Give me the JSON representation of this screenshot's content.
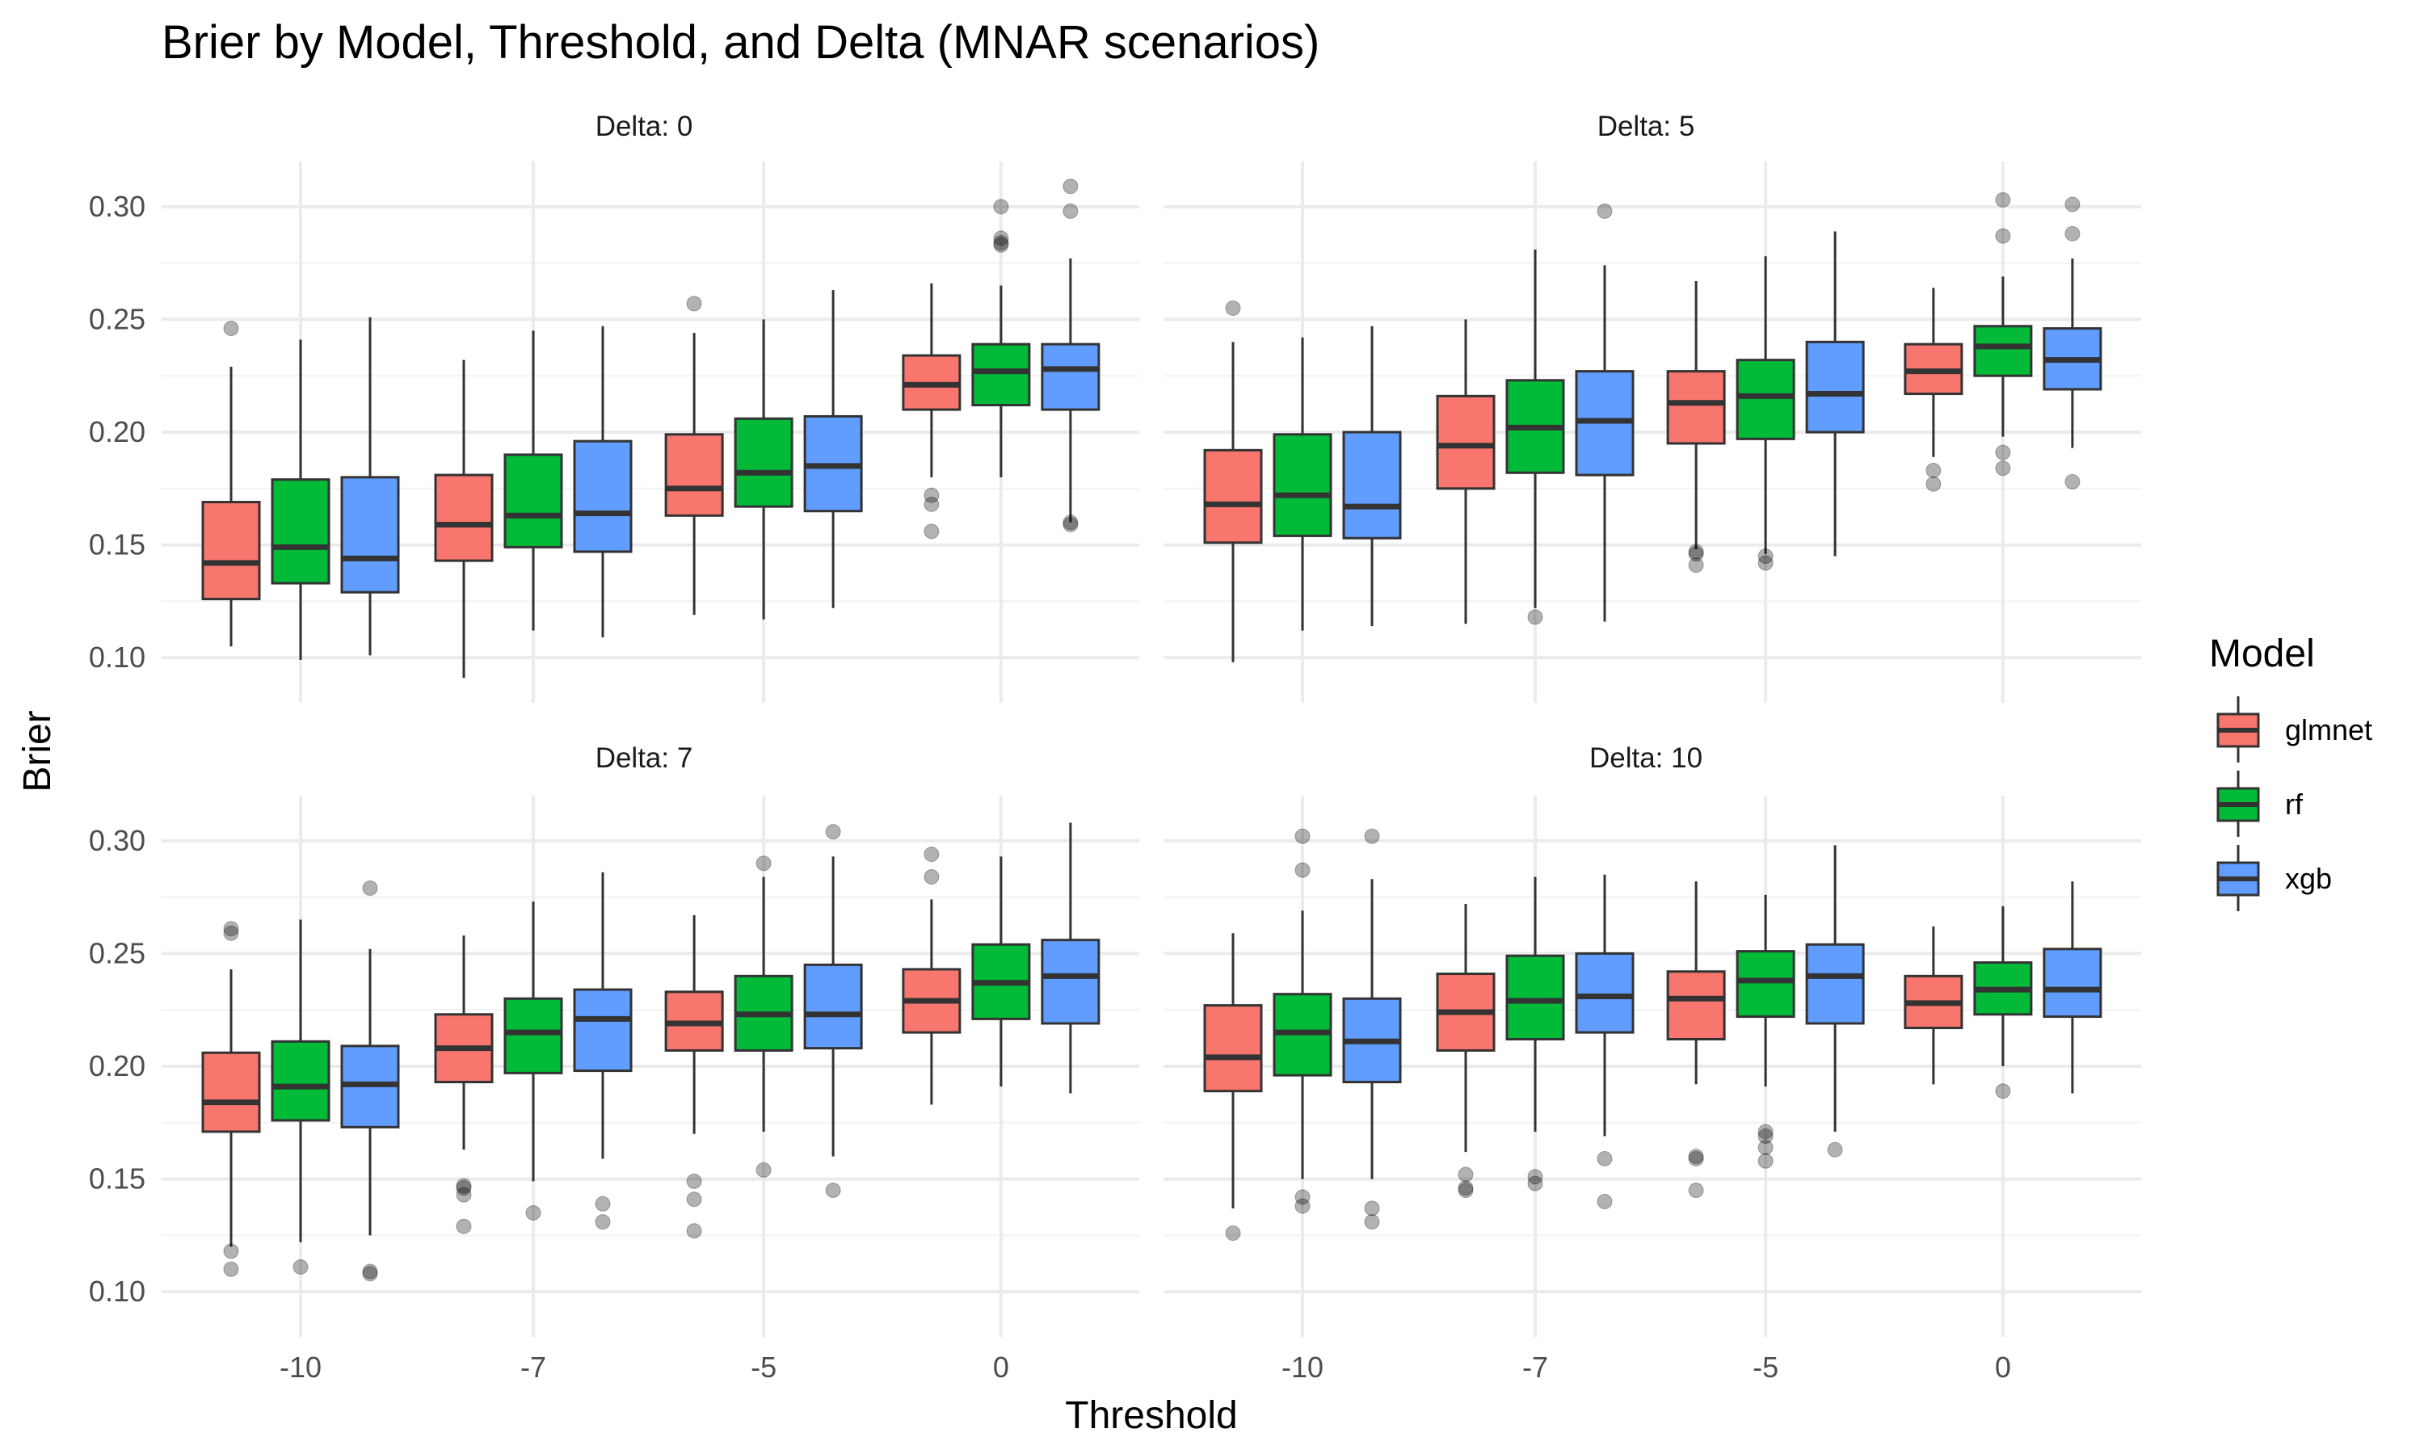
{
  "chart_data": {
    "type": "box",
    "title": "Brier by Model, Threshold, and Delta (MNAR scenarios)",
    "xlabel": "Threshold",
    "ylabel": "Brier",
    "categories": [
      "-10",
      "-7",
      "-5",
      "0"
    ],
    "ylim": [
      0.08,
      0.32
    ],
    "yticks": [
      0.1,
      0.15,
      0.2,
      0.25,
      0.3
    ],
    "ytick_labels": [
      "0.10",
      "0.15",
      "0.20",
      "0.25",
      "0.30"
    ],
    "grid": true,
    "legend": {
      "title": "Model",
      "placement": "right",
      "entries": [
        {
          "name": "glmnet",
          "color": "#F8766D"
        },
        {
          "name": "rf",
          "color": "#00BA38"
        },
        {
          "name": "xgb",
          "color": "#619CFF"
        }
      ]
    },
    "panels": [
      {
        "label": "Delta: 0",
        "series": {
          "glmnet": [
            {
              "min": 0.105,
              "q1": 0.126,
              "median": 0.142,
              "q3": 0.169,
              "max": 0.229,
              "outliers": [
                0.246
              ]
            },
            {
              "min": 0.091,
              "q1": 0.143,
              "median": 0.159,
              "q3": 0.181,
              "max": 0.232,
              "outliers": []
            },
            {
              "min": 0.119,
              "q1": 0.163,
              "median": 0.175,
              "q3": 0.199,
              "max": 0.244,
              "outliers": [
                0.257
              ]
            },
            {
              "min": 0.18,
              "q1": 0.21,
              "median": 0.221,
              "q3": 0.234,
              "max": 0.266,
              "outliers": [
                0.172,
                0.168,
                0.156
              ]
            }
          ],
          "rf": [
            {
              "min": 0.099,
              "q1": 0.133,
              "median": 0.149,
              "q3": 0.179,
              "max": 0.241,
              "outliers": []
            },
            {
              "min": 0.112,
              "q1": 0.149,
              "median": 0.163,
              "q3": 0.19,
              "max": 0.245,
              "outliers": []
            },
            {
              "min": 0.117,
              "q1": 0.167,
              "median": 0.182,
              "q3": 0.206,
              "max": 0.25,
              "outliers": []
            },
            {
              "min": 0.18,
              "q1": 0.212,
              "median": 0.227,
              "q3": 0.239,
              "max": 0.265,
              "outliers": [
                0.3,
                0.286,
                0.284,
                0.283
              ]
            }
          ],
          "xgb": [
            {
              "min": 0.101,
              "q1": 0.129,
              "median": 0.144,
              "q3": 0.18,
              "max": 0.251,
              "outliers": []
            },
            {
              "min": 0.109,
              "q1": 0.147,
              "median": 0.164,
              "q3": 0.196,
              "max": 0.247,
              "outliers": []
            },
            {
              "min": 0.122,
              "q1": 0.165,
              "median": 0.185,
              "q3": 0.207,
              "max": 0.263,
              "outliers": []
            },
            {
              "min": 0.16,
              "q1": 0.21,
              "median": 0.228,
              "q3": 0.239,
              "max": 0.277,
              "outliers": [
                0.309,
                0.298,
                0.16,
                0.159
              ]
            }
          ]
        }
      },
      {
        "label": "Delta: 5",
        "series": {
          "glmnet": [
            {
              "min": 0.098,
              "q1": 0.151,
              "median": 0.168,
              "q3": 0.192,
              "max": 0.24,
              "outliers": [
                0.255
              ]
            },
            {
              "min": 0.115,
              "q1": 0.175,
              "median": 0.194,
              "q3": 0.216,
              "max": 0.25,
              "outliers": []
            },
            {
              "min": 0.148,
              "q1": 0.195,
              "median": 0.213,
              "q3": 0.227,
              "max": 0.267,
              "outliers": [
                0.147,
                0.146,
                0.141
              ]
            },
            {
              "min": 0.189,
              "q1": 0.217,
              "median": 0.227,
              "q3": 0.239,
              "max": 0.264,
              "outliers": [
                0.183,
                0.177
              ]
            }
          ],
          "rf": [
            {
              "min": 0.112,
              "q1": 0.154,
              "median": 0.172,
              "q3": 0.199,
              "max": 0.242,
              "outliers": []
            },
            {
              "min": 0.122,
              "q1": 0.182,
              "median": 0.202,
              "q3": 0.223,
              "max": 0.281,
              "outliers": [
                0.118
              ]
            },
            {
              "min": 0.146,
              "q1": 0.197,
              "median": 0.216,
              "q3": 0.232,
              "max": 0.278,
              "outliers": [
                0.145,
                0.142
              ]
            },
            {
              "min": 0.198,
              "q1": 0.225,
              "median": 0.238,
              "q3": 0.247,
              "max": 0.269,
              "outliers": [
                0.303,
                0.287,
                0.191,
                0.184
              ]
            }
          ],
          "xgb": [
            {
              "min": 0.114,
              "q1": 0.153,
              "median": 0.167,
              "q3": 0.2,
              "max": 0.247,
              "outliers": []
            },
            {
              "min": 0.116,
              "q1": 0.181,
              "median": 0.205,
              "q3": 0.227,
              "max": 0.274,
              "outliers": [
                0.298
              ]
            },
            {
              "min": 0.145,
              "q1": 0.2,
              "median": 0.217,
              "q3": 0.24,
              "max": 0.289,
              "outliers": []
            },
            {
              "min": 0.193,
              "q1": 0.219,
              "median": 0.232,
              "q3": 0.246,
              "max": 0.277,
              "outliers": [
                0.301,
                0.288,
                0.178
              ]
            }
          ]
        }
      },
      {
        "label": "Delta: 7",
        "series": {
          "glmnet": [
            {
              "min": 0.12,
              "q1": 0.171,
              "median": 0.184,
              "q3": 0.206,
              "max": 0.243,
              "outliers": [
                0.261,
                0.259,
                0.118,
                0.11
              ]
            },
            {
              "min": 0.163,
              "q1": 0.193,
              "median": 0.208,
              "q3": 0.223,
              "max": 0.258,
              "outliers": [
                0.147,
                0.146,
                0.143,
                0.129
              ]
            },
            {
              "min": 0.17,
              "q1": 0.207,
              "median": 0.219,
              "q3": 0.233,
              "max": 0.267,
              "outliers": [
                0.149,
                0.141,
                0.127
              ]
            },
            {
              "min": 0.183,
              "q1": 0.215,
              "median": 0.229,
              "q3": 0.243,
              "max": 0.274,
              "outliers": [
                0.294,
                0.284
              ]
            }
          ],
          "rf": [
            {
              "min": 0.122,
              "q1": 0.176,
              "median": 0.191,
              "q3": 0.211,
              "max": 0.265,
              "outliers": [
                0.111
              ]
            },
            {
              "min": 0.149,
              "q1": 0.197,
              "median": 0.215,
              "q3": 0.23,
              "max": 0.273,
              "outliers": [
                0.135
              ]
            },
            {
              "min": 0.171,
              "q1": 0.207,
              "median": 0.223,
              "q3": 0.24,
              "max": 0.284,
              "outliers": [
                0.29,
                0.154
              ]
            },
            {
              "min": 0.191,
              "q1": 0.221,
              "median": 0.237,
              "q3": 0.254,
              "max": 0.293,
              "outliers": []
            }
          ],
          "xgb": [
            {
              "min": 0.125,
              "q1": 0.173,
              "median": 0.192,
              "q3": 0.209,
              "max": 0.252,
              "outliers": [
                0.279,
                0.109,
                0.108
              ]
            },
            {
              "min": 0.159,
              "q1": 0.198,
              "median": 0.221,
              "q3": 0.234,
              "max": 0.286,
              "outliers": [
                0.139,
                0.131
              ]
            },
            {
              "min": 0.16,
              "q1": 0.208,
              "median": 0.223,
              "q3": 0.245,
              "max": 0.293,
              "outliers": [
                0.304,
                0.145
              ]
            },
            {
              "min": 0.188,
              "q1": 0.219,
              "median": 0.24,
              "q3": 0.256,
              "max": 0.308,
              "outliers": []
            }
          ]
        }
      },
      {
        "label": "Delta: 10",
        "series": {
          "glmnet": [
            {
              "min": 0.137,
              "q1": 0.189,
              "median": 0.204,
              "q3": 0.227,
              "max": 0.259,
              "outliers": [
                0.126
              ]
            },
            {
              "min": 0.162,
              "q1": 0.207,
              "median": 0.224,
              "q3": 0.241,
              "max": 0.272,
              "outliers": [
                0.152,
                0.146,
                0.145
              ]
            },
            {
              "min": 0.192,
              "q1": 0.212,
              "median": 0.23,
              "q3": 0.242,
              "max": 0.282,
              "outliers": [
                0.16,
                0.159,
                0.145
              ]
            },
            {
              "min": 0.192,
              "q1": 0.217,
              "median": 0.228,
              "q3": 0.24,
              "max": 0.262,
              "outliers": []
            }
          ],
          "rf": [
            {
              "min": 0.15,
              "q1": 0.196,
              "median": 0.215,
              "q3": 0.232,
              "max": 0.269,
              "outliers": [
                0.302,
                0.287,
                0.142,
                0.138
              ]
            },
            {
              "min": 0.171,
              "q1": 0.212,
              "median": 0.229,
              "q3": 0.249,
              "max": 0.284,
              "outliers": [
                0.151,
                0.148
              ]
            },
            {
              "min": 0.191,
              "q1": 0.222,
              "median": 0.238,
              "q3": 0.251,
              "max": 0.276,
              "outliers": [
                0.171,
                0.169,
                0.164,
                0.158
              ]
            },
            {
              "min": 0.2,
              "q1": 0.223,
              "median": 0.234,
              "q3": 0.246,
              "max": 0.271,
              "outliers": [
                0.189
              ]
            }
          ],
          "xgb": [
            {
              "min": 0.15,
              "q1": 0.193,
              "median": 0.211,
              "q3": 0.23,
              "max": 0.283,
              "outliers": [
                0.302,
                0.137,
                0.131
              ]
            },
            {
              "min": 0.169,
              "q1": 0.215,
              "median": 0.231,
              "q3": 0.25,
              "max": 0.285,
              "outliers": [
                0.159,
                0.14
              ]
            },
            {
              "min": 0.171,
              "q1": 0.219,
              "median": 0.24,
              "q3": 0.254,
              "max": 0.298,
              "outliers": [
                0.163
              ]
            },
            {
              "min": 0.188,
              "q1": 0.222,
              "median": 0.234,
              "q3": 0.252,
              "max": 0.282,
              "outliers": []
            }
          ]
        }
      }
    ]
  }
}
